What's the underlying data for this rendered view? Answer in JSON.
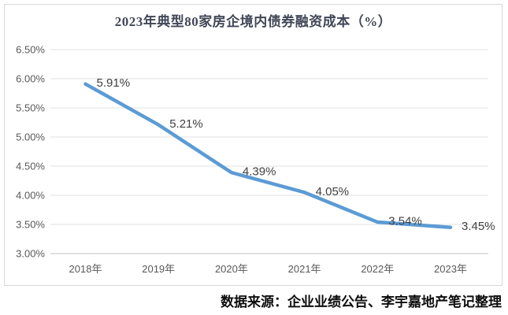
{
  "chart_data": {
    "type": "line",
    "title": "2023年典型80家房企境内债券融资成本（%）",
    "categories": [
      "2018年",
      "2019年",
      "2020年",
      "2021年",
      "2022年",
      "2023年"
    ],
    "values": [
      5.91,
      5.21,
      4.39,
      4.05,
      3.54,
      3.45
    ],
    "data_labels": [
      "5.91%",
      "5.21%",
      "4.39%",
      "4.05%",
      "3.54%",
      "3.45%"
    ],
    "y_ticks": [
      "6.50%",
      "6.00%",
      "5.50%",
      "5.00%",
      "4.50%",
      "4.00%",
      "3.50%",
      "3.00%"
    ],
    "y_tick_values": [
      6.5,
      6.0,
      5.5,
      5.0,
      4.5,
      4.0,
      3.5,
      3.0
    ],
    "ylim": [
      3.0,
      6.5
    ],
    "xlabel": "",
    "ylabel": "",
    "grid": "horizontal",
    "legend": "none",
    "line_color": "#5b9bd5",
    "source_note": "数据来源：企业业绩公告、李宇嘉地产笔记整理"
  },
  "colors": {
    "line": "#5b9bd5",
    "gridline": "#e2e2e2",
    "axis_line": "#bfbfbf",
    "tick_text": "#595959",
    "data_label_text": "#404040",
    "title_text": "#404756",
    "border": "#d9d9d9",
    "background": "#ffffff"
  }
}
